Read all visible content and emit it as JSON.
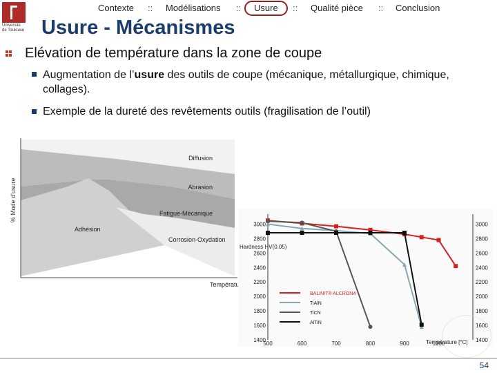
{
  "logo": {
    "line1": "Université",
    "line2": "de Toulouse"
  },
  "nav": {
    "items": [
      {
        "label": "Contexte"
      },
      {
        "label": "Modélisations"
      },
      {
        "label": "Usure"
      },
      {
        "label": "Qualité pièce"
      },
      {
        "label": "Conclusion"
      }
    ],
    "separator": "::",
    "active": "Usure"
  },
  "title": "Usure - Mécanismes",
  "bullets": {
    "main": "Elévation de température dans la zone de coupe",
    "sub1_pre": "Augmentation de l’",
    "sub1_bold": "usure",
    "sub1_post": " des outils de coupe (mécanique, métallurgique, chimique, collages).",
    "sub2": "Exemple de la dureté des revêtements outils (fragilisation de l’outil)"
  },
  "colors": {
    "title": "#1a3d6e",
    "accent": "#9c1c1c",
    "balinit": "#d42020",
    "tialn": "#8aa7b0",
    "ticn": "#555555",
    "altin": "#111111"
  },
  "chart_data": [
    {
      "type": "area",
      "ylabel": "% Mode d'usure",
      "xlabel": "Température",
      "regions": [
        "Diffusion",
        "Abrasion",
        "Fatigue-Mécanique",
        "Adhésion",
        "Corrosion-Oxydation"
      ]
    },
    {
      "type": "line",
      "ylabel": "Hardness HV(0.05)",
      "xlabel": "Température [°C]",
      "xlim": [
        500,
        1100
      ],
      "ylim": [
        1400,
        3100
      ],
      "x_ticks": [
        "500",
        "600",
        "700",
        "800",
        "900",
        "1000"
      ],
      "y_ticks_left": [
        "3000",
        "2800",
        "2600",
        "2400",
        "2200",
        "2000",
        "1800",
        "1600",
        "1400"
      ],
      "y_ticks_right": [
        "3000",
        "2800",
        "2600",
        "2400",
        "2200",
        "2000",
        "1800",
        "1600",
        "1400"
      ],
      "legend": [
        "BALINIT® ALCRONA",
        "TiAlN",
        "TiCN",
        "AlTiN"
      ],
      "series": [
        {
          "name": "BALINIT® ALCRONA",
          "x": [
            500,
            600,
            700,
            800,
            900,
            950,
            1000,
            1050
          ],
          "y": [
            3050,
            3010,
            2970,
            2920,
            2860,
            2820,
            2780,
            2420
          ]
        },
        {
          "name": "TiAlN",
          "x": [
            500,
            600,
            700,
            800,
            900,
            950
          ],
          "y": [
            3000,
            2940,
            2910,
            2870,
            2440,
            1580
          ]
        },
        {
          "name": "TiCN",
          "x": [
            500,
            600,
            700,
            800
          ],
          "y": [
            3040,
            3020,
            2900,
            1580
          ]
        },
        {
          "name": "AlTiN",
          "x": [
            500,
            600,
            700,
            800,
            900,
            950
          ],
          "y": [
            2880,
            2880,
            2880,
            2880,
            2880,
            1610
          ]
        }
      ]
    }
  ],
  "page_number": "54"
}
